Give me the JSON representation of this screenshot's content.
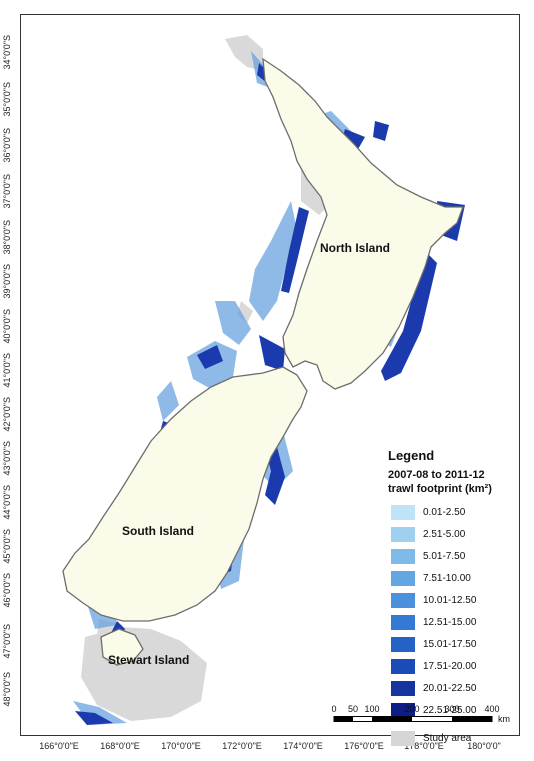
{
  "latitude_labels": [
    "34°0'0\"S",
    "35°0'0\"S",
    "36°0'0\"S",
    "37°0'0\"S",
    "38°0'0\"S",
    "39°0'0\"S",
    "40°0'0\"S",
    "41°0'0\"S",
    "42°0'0\"S",
    "43°0'0\"S",
    "44°0'0\"S",
    "45°0'0\"S",
    "46°0'0\"S",
    "47°0'0\"S",
    "48°0'0\"S"
  ],
  "longitude_labels": [
    "166°0'0\"E",
    "168°0'0\"E",
    "170°0'0\"E",
    "172°0'0\"E",
    "174°0'0\"E",
    "176°0'0\"E",
    "178°0'0\"E",
    "180°0'0\""
  ],
  "islands": {
    "north": "North Island",
    "south": "South Island",
    "stewart": "Stewart Island"
  },
  "legend": {
    "title": "Legend",
    "subtitle_line1": "2007-08 to 2011-12",
    "subtitle_line2": "trawl footprint (km²)",
    "classes": [
      {
        "label": "0.01-2.50",
        "color": "#bfe3f7"
      },
      {
        "label": "2.51-5.00",
        "color": "#9fd0ef"
      },
      {
        "label": "5.01-7.50",
        "color": "#80bbe8"
      },
      {
        "label": "7.51-10.00",
        "color": "#63a6e2"
      },
      {
        "label": "10.01-12.50",
        "color": "#4a90dc"
      },
      {
        "label": "12.51-15.00",
        "color": "#3479d3"
      },
      {
        "label": "15.01-17.50",
        "color": "#2562c6"
      },
      {
        "label": "17.51-20.00",
        "color": "#1b4bb6"
      },
      {
        "label": "20.01-22.50",
        "color": "#15349f"
      },
      {
        "label": "22.51-25.00",
        "color": "#0d1f86"
      }
    ],
    "study_area": {
      "label": "Study area",
      "color": "#d6d6d6"
    }
  },
  "scalebar": {
    "ticks": [
      "0",
      "50",
      "100",
      "200",
      "300",
      "400"
    ],
    "unit": "km"
  },
  "colors": {
    "land": "#fbfbe9",
    "coastline": "#6d6d6d",
    "study_area": "#d9d9d9",
    "trawl_dark": "#1a3aae",
    "trawl_light": "#6aa3e0"
  }
}
